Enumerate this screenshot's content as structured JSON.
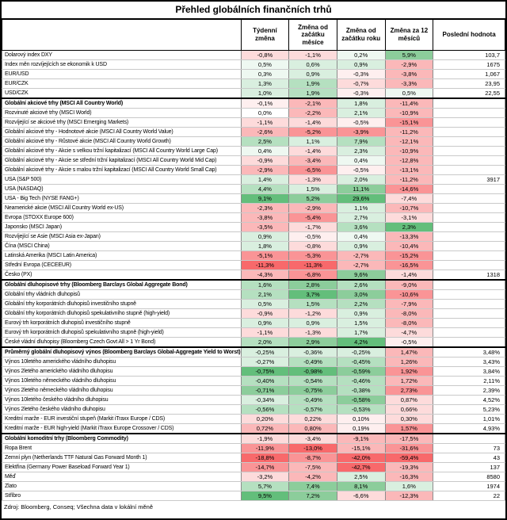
{
  "title": "Přehled globálních finančních trhů",
  "columns": [
    "Týdenní změna",
    "Změna od začátku měsíce",
    "Změna od začátku roku",
    "Změna za 12 měsíců",
    "Poslední hodnota"
  ],
  "footer": "Zdroj: Bloomberg, Conseq; Všechna data v lokální měně",
  "rows": [
    {
      "label": "Dolarový index DXY",
      "section": false,
      "values": [
        "-0,8%",
        "-1,1%",
        "0,2%",
        "5,9%"
      ],
      "colors": [
        "#FDDBDB",
        "#FDDBDB",
        "#EEF8F1",
        "#8CCD9B"
      ],
      "last": "103,7"
    },
    {
      "label": "Index měn rozvíjejících se ekonomik k USD",
      "section": false,
      "values": [
        "0,5%",
        "0,6%",
        "0,9%",
        "-2,9%"
      ],
      "colors": [
        "#EEF8F1",
        "#D9EFDF",
        "#D9EFDF",
        "#FBB8B9"
      ],
      "last": "1675"
    },
    {
      "label": "EUR/USD",
      "section": false,
      "values": [
        "0,3%",
        "0,9%",
        "-0,3%",
        "-3,8%"
      ],
      "colors": [
        "#EEF8F1",
        "#D9EFDF",
        "#FEEFEF",
        "#FBB8B9"
      ],
      "last": "1,067"
    },
    {
      "label": "EUR/CZK",
      "section": false,
      "values": [
        "1,3%",
        "1,9%",
        "-0,7%",
        "-3,3%"
      ],
      "colors": [
        "#D9EFDF",
        "#B5E0C0",
        "#FDDBDB",
        "#FBB8B9"
      ],
      "last": "23,95"
    },
    {
      "label": "USD/CZK",
      "section": false,
      "values": [
        "1,0%",
        "1,9%",
        "-0,3%",
        "0,5%"
      ],
      "colors": [
        "#D9EFDF",
        "#B5E0C0",
        "#FEEFEF",
        "#EEF8F1"
      ],
      "last": "22,55"
    },
    {
      "label": "Globální akciové trhy (MSCI All Country World)",
      "section": true,
      "values": [
        "-0,1%",
        "-2,1%",
        "1,8%",
        "-11,4%"
      ],
      "colors": [
        "#FEEFEF",
        "#FBB8B9",
        "#D9EFDF",
        "#FBB8B9"
      ],
      "last": ""
    },
    {
      "label": "Rozvinuté akciové trhy (MSCI World)",
      "section": false,
      "values": [
        "0,0%",
        "-2,2%",
        "2,1%",
        "-10,9%"
      ],
      "colors": [
        "#FFFFFF",
        "#FBB8B9",
        "#D9EFDF",
        "#FBB8B9"
      ],
      "last": ""
    },
    {
      "label": "Rozvíjející se akciové trhy (MSCI Emerging Markets)",
      "section": false,
      "values": [
        "-1,1%",
        "-1,4%",
        "-0,5%",
        "-15,1%"
      ],
      "colors": [
        "#FDDBDB",
        "#FDDBDB",
        "#FEEFEF",
        "#FA9496"
      ],
      "last": ""
    },
    {
      "label": "Globální akciové trhy - Hodnotové akcie (MSCI All Country World Value)",
      "section": false,
      "values": [
        "-2,6%",
        "-5,2%",
        "-3,9%",
        "-11,2%"
      ],
      "colors": [
        "#FBB8B9",
        "#FA9496",
        "#FA9496",
        "#FBB8B9"
      ],
      "last": ""
    },
    {
      "label": "Globální akciové trhy - Růstové akcie (MSCI All Country World Growth)",
      "section": false,
      "values": [
        "2,5%",
        "1,1%",
        "7,9%",
        "-12,1%"
      ],
      "colors": [
        "#B5E0C0",
        "#D9EFDF",
        "#B5E0C0",
        "#FBB8B9"
      ],
      "last": ""
    },
    {
      "label": "Globální akciové trhy - Akcie s velkou tržní kapitalizací (MSCI All Country World Large Cap)",
      "section": false,
      "values": [
        "0,4%",
        "-1,4%",
        "2,3%",
        "-10,9%"
      ],
      "colors": [
        "#EEF8F1",
        "#FDDBDB",
        "#D9EFDF",
        "#FBB8B9"
      ],
      "last": ""
    },
    {
      "label": "Globální akciové trhy - Akcie se střední tržní kapitalizací (MSCI All Country World Mid Cap)",
      "section": false,
      "values": [
        "-0,9%",
        "-3,4%",
        "0,4%",
        "-12,8%"
      ],
      "colors": [
        "#FDDBDB",
        "#FBB8B9",
        "#EEF8F1",
        "#FBB8B9"
      ],
      "last": ""
    },
    {
      "label": "Globální akciové trhy - Akcie s malou tržní kapitalizací (MSCI All Country World Small Cap)",
      "section": false,
      "values": [
        "-2,9%",
        "-6,5%",
        "-0,5%",
        "-13,1%"
      ],
      "colors": [
        "#FBB8B9",
        "#FA9496",
        "#FEEFEF",
        "#FBB8B9"
      ],
      "last": ""
    },
    {
      "label": "USA (S&P 500)",
      "section": false,
      "values": [
        "1,4%",
        "-1,3%",
        "2,0%",
        "-11,2%"
      ],
      "colors": [
        "#D9EFDF",
        "#FDDBDB",
        "#D9EFDF",
        "#FBB8B9"
      ],
      "last": "3917"
    },
    {
      "label": "USA (NASDAQ)",
      "section": false,
      "values": [
        "4,4%",
        "1,5%",
        "11,1%",
        "-14,6%"
      ],
      "colors": [
        "#B5E0C0",
        "#D9EFDF",
        "#8CCD9B",
        "#FA9496"
      ],
      "last": ""
    },
    {
      "label": "USA - Big Tech (NYSE FANG+)",
      "section": false,
      "values": [
        "9,1%",
        "5,2%",
        "29,6%",
        "-7,4%"
      ],
      "colors": [
        "#63BE7B",
        "#8CCD9B",
        "#63BE7B",
        "#FDDBDB"
      ],
      "last": ""
    },
    {
      "label": "Neamerické akcie (MSCI All Country World ex-US)",
      "section": false,
      "values": [
        "-2,3%",
        "-2,9%",
        "1,1%",
        "-10,7%"
      ],
      "colors": [
        "#FBB8B9",
        "#FBB8B9",
        "#D9EFDF",
        "#FBB8B9"
      ],
      "last": ""
    },
    {
      "label": "Evropa (STOXX Europe 600)",
      "section": false,
      "values": [
        "-3,8%",
        "-5,4%",
        "2,7%",
        "-3,1%"
      ],
      "colors": [
        "#FBB8B9",
        "#FA9496",
        "#D9EFDF",
        "#FDDBDB"
      ],
      "last": ""
    },
    {
      "label": "Japonsko (MSCI Japan)",
      "section": false,
      "values": [
        "-3,5%",
        "-1,7%",
        "3,6%",
        "2,3%"
      ],
      "colors": [
        "#FBB8B9",
        "#FDDBDB",
        "#B5E0C0",
        "#63BE7B"
      ],
      "last": ""
    },
    {
      "label": "Rozvíjející se Asie (MSCI Asia ex-Japan)",
      "section": false,
      "values": [
        "0,9%",
        "-0,5%",
        "0,4%",
        "-13,3%"
      ],
      "colors": [
        "#D9EFDF",
        "#FEEFEF",
        "#EEF8F1",
        "#FBB8B9"
      ],
      "last": ""
    },
    {
      "label": "Čína (MSCI China)",
      "section": false,
      "values": [
        "1,8%",
        "-0,8%",
        "0,9%",
        "-10,4%"
      ],
      "colors": [
        "#D9EFDF",
        "#FDDBDB",
        "#D9EFDF",
        "#FBB8B9"
      ],
      "last": ""
    },
    {
      "label": "Latinská Amerika (MSCI Latin America)",
      "section": false,
      "values": [
        "-5,1%",
        "-5,3%",
        "-2,7%",
        "-15,2%"
      ],
      "colors": [
        "#FA9496",
        "#FA9496",
        "#FBB8B9",
        "#FA9496"
      ],
      "last": ""
    },
    {
      "label": "Střední Evropa (CECEEUR)",
      "section": false,
      "values": [
        "-11,3%",
        "-11,3%",
        "-2,7%",
        "-16,5%"
      ],
      "colors": [
        "#F8696B",
        "#F8696B",
        "#FBB8B9",
        "#FA9496"
      ],
      "last": ""
    },
    {
      "label": "Česko (PX)",
      "section": false,
      "values": [
        "-4,3%",
        "-6,8%",
        "9,6%",
        "-1,4%"
      ],
      "colors": [
        "#FBB8B9",
        "#FA9496",
        "#8CCD9B",
        "#FDDBDB"
      ],
      "last": "1318"
    },
    {
      "label": "Globální dluhopisové trhy (Bloomberg Barclays Global Aggregate Bond)",
      "section": true,
      "values": [
        "1,6%",
        "2,8%",
        "2,6%",
        "-9,0%"
      ],
      "colors": [
        "#B5E0C0",
        "#8CCD9B",
        "#B5E0C0",
        "#FBB8B9"
      ],
      "last": ""
    },
    {
      "label": "Globální trhy vládních dluhopisů",
      "section": false,
      "values": [
        "2,1%",
        "3,7%",
        "3,0%",
        "-10,6%"
      ],
      "colors": [
        "#B5E0C0",
        "#63BE7B",
        "#8CCD9B",
        "#FA9496"
      ],
      "last": ""
    },
    {
      "label": "Globální trhy korporátních dluhopisů investičního stupně",
      "section": false,
      "values": [
        "0,5%",
        "1,5%",
        "2,2%",
        "-7,9%"
      ],
      "colors": [
        "#D9EFDF",
        "#B5E0C0",
        "#B5E0C0",
        "#FBB8B9"
      ],
      "last": ""
    },
    {
      "label": "Globální trhy korporátních dluhopisů spekulativního stupně (high-yield)",
      "section": false,
      "values": [
        "-0,9%",
        "-1,2%",
        "0,9%",
        "-8,0%"
      ],
      "colors": [
        "#FDDBDB",
        "#FDDBDB",
        "#D9EFDF",
        "#FBB8B9"
      ],
      "last": ""
    },
    {
      "label": "Eurový trh korporátních dluhopisů investičního stupně",
      "section": false,
      "values": [
        "0,9%",
        "0,9%",
        "1,5%",
        "-8,0%"
      ],
      "colors": [
        "#D9EFDF",
        "#D9EFDF",
        "#D9EFDF",
        "#FBB8B9"
      ],
      "last": ""
    },
    {
      "label": "Eurový trh korporátních dluhopisů spekulativního stupně (high-yield)",
      "section": false,
      "values": [
        "-1,1%",
        "-1,3%",
        "1,7%",
        "-4,7%"
      ],
      "colors": [
        "#FDDBDB",
        "#FDDBDB",
        "#D9EFDF",
        "#FDDBDB"
      ],
      "last": ""
    },
    {
      "label": "České vládní dluhopisy (Bloomberg Czech Govt All > 1 Yr Bond)",
      "section": false,
      "values": [
        "2,0%",
        "2,9%",
        "4,2%",
        "-0,5%"
      ],
      "colors": [
        "#B5E0C0",
        "#8CCD9B",
        "#63BE7B",
        "#FEEFEF"
      ],
      "last": ""
    },
    {
      "label": "Průměrný globální dluhopisový výnos (Bloomberg Barclays Global-Aggregate Yield to Worst)",
      "section": true,
      "values": [
        "-0,25%",
        "-0,36%",
        "-0,25%",
        "1,47%"
      ],
      "colors": [
        "#D9EFDF",
        "#D9EFDF",
        "#D9EFDF",
        "#FBB8B9"
      ],
      "last": "3,48%"
    },
    {
      "label": "Výnos 10letého amerického vládního dluhopisu",
      "section": false,
      "values": [
        "-0,27%",
        "-0,49%",
        "-0,45%",
        "1,26%"
      ],
      "colors": [
        "#D9EFDF",
        "#B5E0C0",
        "#B5E0C0",
        "#FBB8B9"
      ],
      "last": "3,43%"
    },
    {
      "label": "Výnos 2letého amerického vládního dluhopisu",
      "section": false,
      "values": [
        "-0,75%",
        "-0,98%",
        "-0,59%",
        "1,92%"
      ],
      "colors": [
        "#63BE7B",
        "#63BE7B",
        "#8CCD9B",
        "#FA9496"
      ],
      "last": "3,84%"
    },
    {
      "label": "Výnos 10letého německého vládního dluhopisu",
      "section": false,
      "values": [
        "-0,40%",
        "-0,54%",
        "-0,46%",
        "1,72%"
      ],
      "colors": [
        "#B5E0C0",
        "#B5E0C0",
        "#B5E0C0",
        "#FBB8B9"
      ],
      "last": "2,11%"
    },
    {
      "label": "Výnos 2letého německého vládního dluhopisu",
      "section": false,
      "values": [
        "-0,71%",
        "-0,75%",
        "-0,38%",
        "2,73%"
      ],
      "colors": [
        "#8CCD9B",
        "#8CCD9B",
        "#B5E0C0",
        "#FA9496"
      ],
      "last": "2,39%"
    },
    {
      "label": "Výnos 10letého českého vládního dluhopisu",
      "section": false,
      "values": [
        "-0,34%",
        "-0,49%",
        "-0,58%",
        "0,87%"
      ],
      "colors": [
        "#D9EFDF",
        "#B5E0C0",
        "#8CCD9B",
        "#FDDBDB"
      ],
      "last": "4,52%"
    },
    {
      "label": "Výnos 2letého českého vládního dluhopisu",
      "section": false,
      "values": [
        "-0,56%",
        "-0,57%",
        "-0,53%",
        "0,66%"
      ],
      "colors": [
        "#B5E0C0",
        "#B5E0C0",
        "#B5E0C0",
        "#FDDBDB"
      ],
      "last": "5,23%"
    },
    {
      "label": "Kreditní marže - EUR investiční stupeň (Markit iTraxx Europe / CDS)",
      "section": false,
      "values": [
        "0,20%",
        "0,22%",
        "0,10%",
        "0,30%"
      ],
      "colors": [
        "#FDDBDB",
        "#FDDBDB",
        "#FEEFEF",
        "#FDDBDB"
      ],
      "last": "1,01%"
    },
    {
      "label": "Kreditní marže - EUR high-yield (Markit iTraxx Europe Crossover / CDS)",
      "section": false,
      "values": [
        "0,72%",
        "0,80%",
        "0,19%",
        "1,57%"
      ],
      "colors": [
        "#FBB8B9",
        "#FBB8B9",
        "#FEEFEF",
        "#FA9496"
      ],
      "last": "4,93%"
    },
    {
      "label": "Globální komoditní trhy (Bloomberg Commodity)",
      "section": true,
      "values": [
        "-1,9%",
        "-3,4%",
        "-9,1%",
        "-17,5%"
      ],
      "colors": [
        "#FDDBDB",
        "#FDDBDB",
        "#FBB8B9",
        "#FBB8B9"
      ],
      "last": ""
    },
    {
      "label": "Ropa Brent",
      "section": false,
      "values": [
        "-11,9%",
        "-13,0%",
        "-15,1%",
        "-31,6%"
      ],
      "colors": [
        "#FA9496",
        "#F8696B",
        "#FBB8B9",
        "#FA9496"
      ],
      "last": "73"
    },
    {
      "label": "Zemní plyn (Netherlands TTF Natural Gas Forward Month 1)",
      "section": false,
      "values": [
        "-18,8%",
        "-8,7%",
        "-42,0%",
        "-59,4%"
      ],
      "colors": [
        "#F8696B",
        "#FA9496",
        "#F8696B",
        "#F8696B"
      ],
      "last": "43"
    },
    {
      "label": "Elektřina (Germany Power Baseload Forward Year 1)",
      "section": false,
      "values": [
        "-14,7%",
        "-7,5%",
        "-42,7%",
        "-19,3%"
      ],
      "colors": [
        "#FA9496",
        "#FBB8B9",
        "#F8696B",
        "#FBB8B9"
      ],
      "last": "137"
    },
    {
      "label": "Měď",
      "section": false,
      "values": [
        "-3,2%",
        "-4,2%",
        "2,5%",
        "-16,3%"
      ],
      "colors": [
        "#FDDBDB",
        "#FBB8B9",
        "#D9EFDF",
        "#FBB8B9"
      ],
      "last": "8580"
    },
    {
      "label": "Zlato",
      "section": false,
      "values": [
        "5,7%",
        "7,4%",
        "8,1%",
        "1,6%"
      ],
      "colors": [
        "#B5E0C0",
        "#8CCD9B",
        "#8CCD9B",
        "#D9EFDF"
      ],
      "last": "1974"
    },
    {
      "label": "Stříbro",
      "section": false,
      "values": [
        "9,5%",
        "7,2%",
        "-6,6%",
        "-12,3%"
      ],
      "colors": [
        "#63BE7B",
        "#8CCD9B",
        "#FDDBDB",
        "#FBB8B9"
      ],
      "last": "22"
    }
  ]
}
